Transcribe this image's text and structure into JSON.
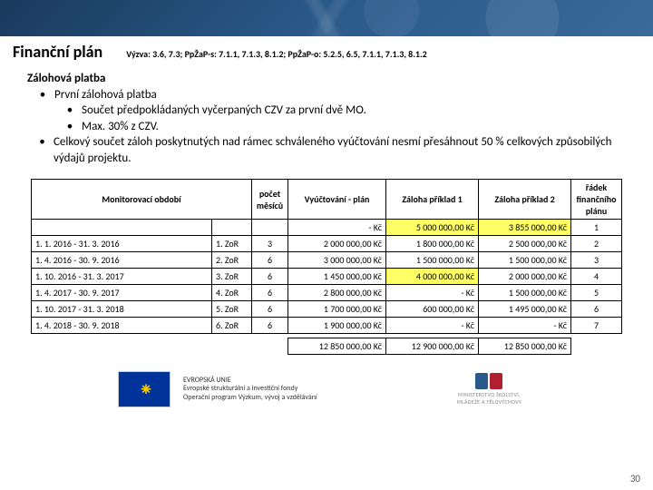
{
  "header": {
    "title": "Finanční plán",
    "subtitle": "Výzva: 3.6, 7.3; PpŽaP-s: 7.1.1, 7.1.3, 8.1.2; PpŽaP-o: 5.2.5, 6.5, 7.1.1, 7.1.3, 8.1.2"
  },
  "body": {
    "heading": "Zálohová platba",
    "b1": "První zálohová platba",
    "b1a": "Součet předpokládaných vyčerpaných CZV za první dvě MO.",
    "b1b": "Max. 30% z CZV.",
    "b2": "Celkový součet záloh poskytnutých nad rámec schváleného vyúčtování nesmí přesáhnout 50 % celkových způsobilých výdajů projektu."
  },
  "table": {
    "headers": {
      "period": "Monitorovací období",
      "zor": "",
      "months": "počet měsíců",
      "vyuc": "Vyúčtování - plán",
      "zal1": "Záloha příklad 1",
      "zal2": "Záloha příklad 2",
      "radek": "řádek finančního plánu"
    },
    "topRow": {
      "vyuc": "-   Kč",
      "zal1": "5 000 000,00 Kč",
      "zal2": "3 855 000,00 Kč",
      "radek": "1"
    },
    "rows": [
      {
        "period": "1. 1. 2016 - 31. 3. 2016",
        "zor": "1. ZoR",
        "m": "3",
        "vyuc": "2 000 000,00 Kč",
        "zal1": "1 800 000,00 Kč",
        "zal2": "2 500 000,00 Kč",
        "r": "2"
      },
      {
        "period": "1. 4. 2016 - 30. 9. 2016",
        "zor": "2. ZoR",
        "m": "6",
        "vyuc": "3 000 000,00 Kč",
        "zal1": "1 500 000,00 Kč",
        "zal2": "1 500 000,00 Kč",
        "r": "3"
      },
      {
        "period": "1. 10. 2016 - 31. 3. 2017",
        "zor": "3. ZoR",
        "m": "6",
        "vyuc": "1 450 000,00 Kč",
        "zal1": "4 000 000,00 Kč",
        "zal2": "2 000 000,00 Kč",
        "r": "4",
        "hl": true
      },
      {
        "period": "1. 4. 2017 - 30. 9. 2017",
        "zor": "4. ZoR",
        "m": "6",
        "vyuc": "2 800 000,00 Kč",
        "zal1": "-   Kč",
        "zal2": "1 500 000,00 Kč",
        "r": "5"
      },
      {
        "period": "1. 10. 2017 - 31. 3. 2018",
        "zor": "5. ZoR",
        "m": "6",
        "vyuc": "1 700 000,00 Kč",
        "zal1": "600 000,00 Kč",
        "zal2": "1 495 000,00 Kč",
        "r": "6"
      },
      {
        "period": "1. 4. 2018 - 30. 9. 2018",
        "zor": "6. ZoR",
        "m": "6",
        "vyuc": "1 900 000,00 Kč",
        "zal1": "-   Kč",
        "zal2": "-   Kč",
        "r": "7"
      }
    ],
    "totals": {
      "vyuc": "12 850 000,00 Kč",
      "zal1": "12 900 000,00 Kč",
      "zal2": "12 850 000,00 Kč"
    }
  },
  "footer": {
    "eu_l1": "EVROPSKÁ UNIE",
    "eu_l2": "Evropské strukturální a investiční fondy",
    "eu_l3": "Operační program Výzkum, vývoj a vzdělávání",
    "msmt_l1": "MINISTERSTVO ŠKOLSTVÍ,",
    "msmt_l2": "MLÁDEŽE A TĚLOVÝCHOVY",
    "page": "30"
  },
  "colors": {
    "highlight": "#ffff66",
    "eu_blue": "#003399",
    "eu_gold": "#ffcc00",
    "msmt_blue": "#2a5a8a",
    "msmt_red": "#b02030"
  }
}
